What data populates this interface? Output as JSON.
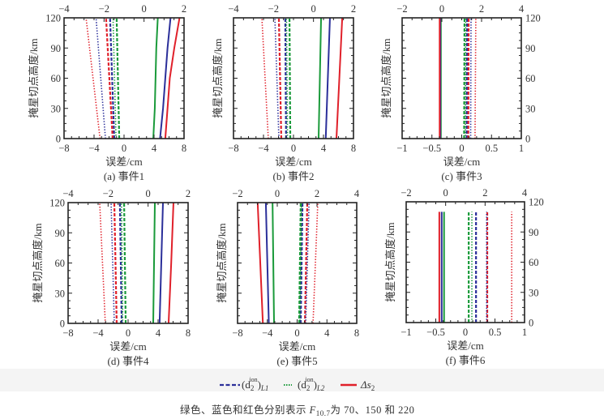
{
  "colors": {
    "green": "#1a9a3a",
    "blue": "#2b2f9a",
    "red": "#e0202a",
    "axis": "#222222"
  },
  "legend": {
    "items": [
      {
        "label_main": "(d",
        "label_sub2": "2",
        "label_sup": "ion",
        "label_close": ")",
        "label_subscript": "L1",
        "style": "dashed",
        "color": "#2b2f9a"
      },
      {
        "label_main": "(d",
        "label_sub2": "2",
        "label_sup": "ion",
        "label_close": ")",
        "label_subscript": "L2",
        "style": "dotted",
        "color": "#1a9a3a"
      },
      {
        "label_main": "Δs",
        "label_sub2": "2",
        "label_sup": "",
        "label_close": "",
        "label_subscript": "",
        "style": "solid",
        "color": "#e0202a"
      }
    ]
  },
  "caption": {
    "prefix": "绿色、蓝色和红色分别表示 ",
    "var_main": "F",
    "var_sub": "10.7",
    "suffix": "为 70、150 和 220"
  },
  "chart_data": [
    {
      "type": "line",
      "id": "a",
      "title": "(a) 事件1",
      "xlabel": "误差/cm",
      "ylabel": "掩星切点高度/km",
      "ylabel_side": "left",
      "xlim_bottom": [
        -8,
        8
      ],
      "xticks_bottom": [
        "−8",
        "−4",
        "0",
        "4",
        "8"
      ],
      "xlim_top": [
        -4,
        2
      ],
      "xticks_top": [
        "−4",
        "−2",
        "0",
        "2"
      ],
      "ylim": [
        0,
        120
      ],
      "yticks": [
        "0",
        "30",
        "60",
        "90",
        "120"
      ],
      "series": [
        {
          "name": "Δs2 F10.7=70",
          "axis": "bottom",
          "style": "solid",
          "color": "green",
          "h": [
            0,
            30,
            60,
            90,
            120
          ],
          "x": [
            3.9,
            4.1,
            4.2,
            4.3,
            4.5
          ]
        },
        {
          "name": "Δs2 F10.7=150",
          "axis": "bottom",
          "style": "solid",
          "color": "blue",
          "h": [
            0,
            30,
            60,
            90,
            120
          ],
          "x": [
            4.8,
            5.2,
            5.5,
            5.8,
            6.2
          ]
        },
        {
          "name": "Δs2 F10.7=220",
          "axis": "bottom",
          "style": "solid",
          "color": "red",
          "h": [
            0,
            30,
            60,
            90,
            120
          ],
          "x": [
            5.5,
            5.8,
            6.1,
            6.7,
            7.4
          ]
        },
        {
          "name": "(d2ion)L1 F10.7=70",
          "axis": "top",
          "style": "dashed",
          "color": "green",
          "h": [
            0,
            120
          ],
          "x": [
            -1.24,
            -1.37
          ]
        },
        {
          "name": "(d2ion)L1 F10.7=150",
          "axis": "top",
          "style": "dashed",
          "color": "blue",
          "h": [
            0,
            120
          ],
          "x": [
            -1.49,
            -1.7
          ]
        },
        {
          "name": "(d2ion)L1 F10.7=220",
          "axis": "top",
          "style": "dashed",
          "color": "red",
          "h": [
            0,
            120
          ],
          "x": [
            -1.57,
            -1.9
          ]
        },
        {
          "name": "(d2ion)L2 F10.7=70",
          "axis": "top",
          "style": "dotted",
          "color": "green",
          "h": [
            0,
            120
          ],
          "x": [
            -1.4,
            -1.55
          ]
        },
        {
          "name": "(d2ion)L2 F10.7=150",
          "axis": "top",
          "style": "dotted",
          "color": "blue",
          "h": [
            0,
            120
          ],
          "x": [
            -1.93,
            -2.4
          ]
        },
        {
          "name": "(d2ion)L2 F10.7=220",
          "axis": "top",
          "style": "dotted",
          "color": "red",
          "h": [
            0,
            120
          ],
          "x": [
            -2.2,
            -2.9
          ]
        }
      ]
    },
    {
      "type": "line",
      "id": "b",
      "title": "(b) 事件2",
      "xlabel": "误差/cm",
      "ylabel": "掩星切点高度/km",
      "ylabel_side": "left",
      "xlim_bottom": [
        -8,
        8
      ],
      "xticks_bottom": [
        "−8",
        "−4",
        "0",
        "4",
        "8"
      ],
      "xlim_top": [
        -4,
        2
      ],
      "xticks_top": [
        "−4",
        "−2",
        "0",
        "2"
      ],
      "ylim": [
        0,
        120
      ],
      "yticks": [],
      "series": [
        {
          "name": "Δs2 F10.7=70",
          "axis": "bottom",
          "style": "solid",
          "color": "green",
          "h": [
            0,
            120
          ],
          "x": [
            3.35,
            3.68
          ]
        },
        {
          "name": "Δs2 F10.7=150",
          "axis": "bottom",
          "style": "solid",
          "color": "blue",
          "h": [
            0,
            120
          ],
          "x": [
            4.3,
            4.86
          ]
        },
        {
          "name": "Δs2 F10.7=220",
          "axis": "bottom",
          "style": "solid",
          "color": "red",
          "h": [
            0,
            120
          ],
          "x": [
            5.73,
            6.5
          ]
        },
        {
          "name": "(d2ion)L1 F10.7=70",
          "axis": "top",
          "style": "dashed",
          "color": "green",
          "h": [
            0,
            120
          ],
          "x": [
            -1.16,
            -1.2
          ]
        },
        {
          "name": "(d2ion)L1 F10.7=150",
          "axis": "top",
          "style": "dashed",
          "color": "blue",
          "h": [
            0,
            120
          ],
          "x": [
            -1.37,
            -1.41
          ]
        },
        {
          "name": "(d2ion)L1 F10.7=220",
          "axis": "top",
          "style": "dashed",
          "color": "red",
          "h": [
            0,
            120
          ],
          "x": [
            -1.61,
            -1.73
          ]
        },
        {
          "name": "(d2ion)L2 F10.7=70",
          "axis": "top",
          "style": "dotted",
          "color": "green",
          "h": [
            0,
            120
          ],
          "x": [
            -1.3,
            -1.35
          ]
        },
        {
          "name": "(d2ion)L2 F10.7=150",
          "axis": "top",
          "style": "dotted",
          "color": "blue",
          "h": [
            0,
            120
          ],
          "x": [
            -1.73,
            -1.93
          ]
        },
        {
          "name": "(d2ion)L2 F10.7=220",
          "axis": "top",
          "style": "dotted",
          "color": "red",
          "h": [
            0,
            120
          ],
          "x": [
            -2.26,
            -2.58
          ]
        }
      ]
    },
    {
      "type": "line",
      "id": "c",
      "title": "(c) 事件3",
      "xlabel": "误差/cm",
      "ylabel": "掩星切点高度/km",
      "ylabel_side": "right-ticks",
      "xlim_bottom": [
        -1,
        1
      ],
      "xticks_bottom": [
        "−1",
        "−0.5",
        "0",
        "0.5",
        "1"
      ],
      "xlim_top": [
        -2,
        4
      ],
      "xticks_top": [
        "−2",
        "0",
        "2",
        "4"
      ],
      "ylim": [
        0,
        120
      ],
      "yticks": [
        "0",
        "30",
        "60",
        "90",
        "120"
      ],
      "series": [
        {
          "name": "Δs2 F10.7=70",
          "axis": "bottom",
          "style": "solid",
          "color": "green",
          "h": [
            0,
            120
          ],
          "x": [
            -0.35,
            -0.35
          ]
        },
        {
          "name": "Δs2 F10.7=150",
          "axis": "bottom",
          "style": "solid",
          "color": "blue",
          "h": [
            0,
            120
          ],
          "x": [
            -0.36,
            -0.36
          ]
        },
        {
          "name": "Δs2 F10.7=220",
          "axis": "bottom",
          "style": "solid",
          "color": "red",
          "h": [
            0,
            120
          ],
          "x": [
            -0.37,
            -0.37
          ]
        },
        {
          "name": "(d2ion)L1 F10.7=70",
          "axis": "top",
          "style": "dashed",
          "color": "green",
          "h": [
            0,
            120
          ],
          "x": [
            1.12,
            1.14
          ]
        },
        {
          "name": "(d2ion)L1 F10.7=150",
          "axis": "top",
          "style": "dashed",
          "color": "blue",
          "h": [
            0,
            120
          ],
          "x": [
            1.25,
            1.27
          ]
        },
        {
          "name": "(d2ion)L1 F10.7=220",
          "axis": "top",
          "style": "dashed",
          "color": "red",
          "h": [
            0,
            120
          ],
          "x": [
            1.33,
            1.35
          ]
        },
        {
          "name": "(d2ion)L2 F10.7=70",
          "axis": "top",
          "style": "dotted",
          "color": "green",
          "h": [
            0,
            120
          ],
          "x": [
            1.18,
            1.2
          ]
        },
        {
          "name": "(d2ion)L2 F10.7=150",
          "axis": "top",
          "style": "dotted",
          "color": "blue",
          "h": [
            0,
            120
          ],
          "x": [
            1.45,
            1.47
          ]
        },
        {
          "name": "(d2ion)L2 F10.7=220",
          "axis": "top",
          "style": "dotted",
          "color": "red",
          "h": [
            0,
            120
          ],
          "x": [
            1.67,
            1.71
          ]
        }
      ]
    },
    {
      "type": "line",
      "id": "d",
      "title": "(d) 事件4",
      "xlabel": "误差/cm",
      "ylabel": "掩星切点高度/km",
      "ylabel_side": "left",
      "xlim_bottom": [
        -8,
        8
      ],
      "xticks_bottom": [
        "−8",
        "−4",
        "0",
        "4",
        "8"
      ],
      "xlim_top": [
        -4,
        2
      ],
      "xticks_top": [
        "−4",
        "−2",
        "0",
        "2"
      ],
      "ylim": [
        0,
        120
      ],
      "yticks": [
        "0",
        "30",
        "60",
        "90",
        "120"
      ],
      "series": [
        {
          "name": "Δs2 F10.7=70",
          "axis": "bottom",
          "style": "solid",
          "color": "green",
          "h": [
            0,
            120
          ],
          "x": [
            3.35,
            3.57
          ]
        },
        {
          "name": "Δs2 F10.7=150",
          "axis": "bottom",
          "style": "solid",
          "color": "blue",
          "h": [
            0,
            120
          ],
          "x": [
            4.2,
            4.65
          ]
        },
        {
          "name": "Δs2 F10.7=220",
          "axis": "bottom",
          "style": "solid",
          "color": "red",
          "h": [
            0,
            60,
            120
          ],
          "x": [
            5.4,
            5.75,
            6.05
          ]
        },
        {
          "name": "(d2ion)L1 F10.7=70",
          "axis": "top",
          "style": "dashed",
          "color": "green",
          "h": [
            0,
            120
          ],
          "x": [
            -1.12,
            -1.2
          ]
        },
        {
          "name": "(d2ion)L1 F10.7=150",
          "axis": "top",
          "style": "dashed",
          "color": "blue",
          "h": [
            0,
            120
          ],
          "x": [
            -1.32,
            -1.41
          ]
        },
        {
          "name": "(d2ion)L1 F10.7=220",
          "axis": "top",
          "style": "dashed",
          "color": "red",
          "h": [
            0,
            120
          ],
          "x": [
            -1.57,
            -1.69
          ]
        },
        {
          "name": "(d2ion)L2 F10.7=70",
          "axis": "top",
          "style": "dotted",
          "color": "green",
          "h": [
            0,
            120
          ],
          "x": [
            -1.27,
            -1.33
          ]
        },
        {
          "name": "(d2ion)L2 F10.7=150",
          "axis": "top",
          "style": "dotted",
          "color": "blue",
          "h": [
            0,
            120
          ],
          "x": [
            -1.69,
            -1.85
          ]
        },
        {
          "name": "(d2ion)L2 F10.7=220",
          "axis": "top",
          "style": "dotted",
          "color": "red",
          "h": [
            0,
            120
          ],
          "x": [
            -2.14,
            -2.42
          ]
        }
      ]
    },
    {
      "type": "line",
      "id": "e",
      "title": "(e) 事件5",
      "xlabel": "误差/cm",
      "ylabel": "掩星切点高度/km",
      "ylabel_side": "left",
      "xlim_bottom": [
        -8,
        8
      ],
      "xticks_bottom": [
        "−8",
        "−4",
        "0",
        "4",
        "8"
      ],
      "xlim_top": [
        -2,
        4
      ],
      "xticks_top": [
        "−2",
        "0",
        "2",
        "4"
      ],
      "ylim": [
        0,
        120
      ],
      "yticks": [],
      "series": [
        {
          "name": "Δs2 F10.7=70",
          "axis": "bottom",
          "style": "solid",
          "color": "green",
          "h": [
            0,
            120
          ],
          "x": [
            -3.1,
            -3.3
          ]
        },
        {
          "name": "Δs2 F10.7=150",
          "axis": "bottom",
          "style": "solid",
          "color": "blue",
          "h": [
            0,
            120
          ],
          "x": [
            -3.8,
            -4.2
          ]
        },
        {
          "name": "Δs2 F10.7=220",
          "axis": "bottom",
          "style": "solid",
          "color": "red",
          "h": [
            0,
            120
          ],
          "x": [
            -4.6,
            -5.3
          ]
        },
        {
          "name": "(d2ion)L1 F10.7=70",
          "axis": "top",
          "style": "dashed",
          "color": "green",
          "h": [
            0,
            120
          ],
          "x": [
            1.1,
            1.18
          ]
        },
        {
          "name": "(d2ion)L1 F10.7=150",
          "axis": "top",
          "style": "dashed",
          "color": "blue",
          "h": [
            0,
            120
          ],
          "x": [
            1.18,
            1.27
          ]
        },
        {
          "name": "(d2ion)L1 F10.7=220",
          "axis": "top",
          "style": "dashed",
          "color": "red",
          "h": [
            0,
            120
          ],
          "x": [
            1.39,
            1.51
          ]
        },
        {
          "name": "(d2ion)L2 F10.7=70",
          "axis": "top",
          "style": "dotted",
          "color": "green",
          "h": [
            0,
            120
          ],
          "x": [
            1.14,
            1.22
          ]
        },
        {
          "name": "(d2ion)L2 F10.7=150",
          "axis": "top",
          "style": "dotted",
          "color": "blue",
          "h": [
            0,
            120
          ],
          "x": [
            1.43,
            1.6
          ]
        },
        {
          "name": "(d2ion)L2 F10.7=220",
          "axis": "top",
          "style": "dotted",
          "color": "red",
          "h": [
            0,
            120
          ],
          "x": [
            1.8,
            2.04
          ]
        }
      ]
    },
    {
      "type": "line",
      "id": "f",
      "title": "(f) 事件6",
      "xlabel": "误差/cm",
      "ylabel": "掩星切点高度/km",
      "ylabel_side": "right-ticks",
      "xlim_bottom": [
        -1,
        1
      ],
      "xticks_bottom": [
        "−1",
        "−0.5",
        "0",
        "0.5",
        "1"
      ],
      "xlim_top": [
        -2,
        4
      ],
      "xticks_top": [
        "−2",
        "0",
        "2",
        "4"
      ],
      "ylim": [
        0,
        120
      ],
      "yticks": [
        "0",
        "30",
        "60",
        "90",
        "120"
      ],
      "series": [
        {
          "name": "Δs2 F10.7=70",
          "axis": "bottom",
          "style": "solid",
          "color": "green",
          "h": [
            0,
            110
          ],
          "x": [
            -0.36,
            -0.36
          ]
        },
        {
          "name": "Δs2 F10.7=150",
          "axis": "bottom",
          "style": "solid",
          "color": "blue",
          "h": [
            0,
            110
          ],
          "x": [
            -0.4,
            -0.4
          ]
        },
        {
          "name": "Δs2 F10.7=220",
          "axis": "bottom",
          "style": "solid",
          "color": "red",
          "h": [
            0,
            110
          ],
          "x": [
            -0.44,
            -0.44
          ]
        },
        {
          "name": "(d2ion)L1 F10.7=70",
          "axis": "top",
          "style": "dashed",
          "color": "green",
          "h": [
            0,
            110
          ],
          "x": [
            1.17,
            1.17
          ]
        },
        {
          "name": "(d2ion)L1 F10.7=150",
          "axis": "top",
          "style": "dashed",
          "color": "blue",
          "h": [
            0,
            110
          ],
          "x": [
            1.54,
            1.54
          ]
        },
        {
          "name": "(d2ion)L1 F10.7=220",
          "axis": "top",
          "style": "dashed",
          "color": "red",
          "h": [
            0,
            110
          ],
          "x": [
            2.11,
            2.11
          ]
        },
        {
          "name": "(d2ion)L2 F10.7=70",
          "axis": "top",
          "style": "dotted",
          "color": "green",
          "h": [
            0,
            110
          ],
          "x": [
            1.33,
            1.33
          ]
        },
        {
          "name": "(d2ion)L2 F10.7=150",
          "axis": "top",
          "style": "dotted",
          "color": "blue",
          "h": [
            0,
            110
          ],
          "x": [
            2.08,
            2.08
          ]
        },
        {
          "name": "(d2ion)L2 F10.7=220",
          "axis": "top",
          "style": "dotted",
          "color": "red",
          "h": [
            0,
            110
          ],
          "x": [
            3.35,
            3.35
          ]
        }
      ]
    }
  ]
}
